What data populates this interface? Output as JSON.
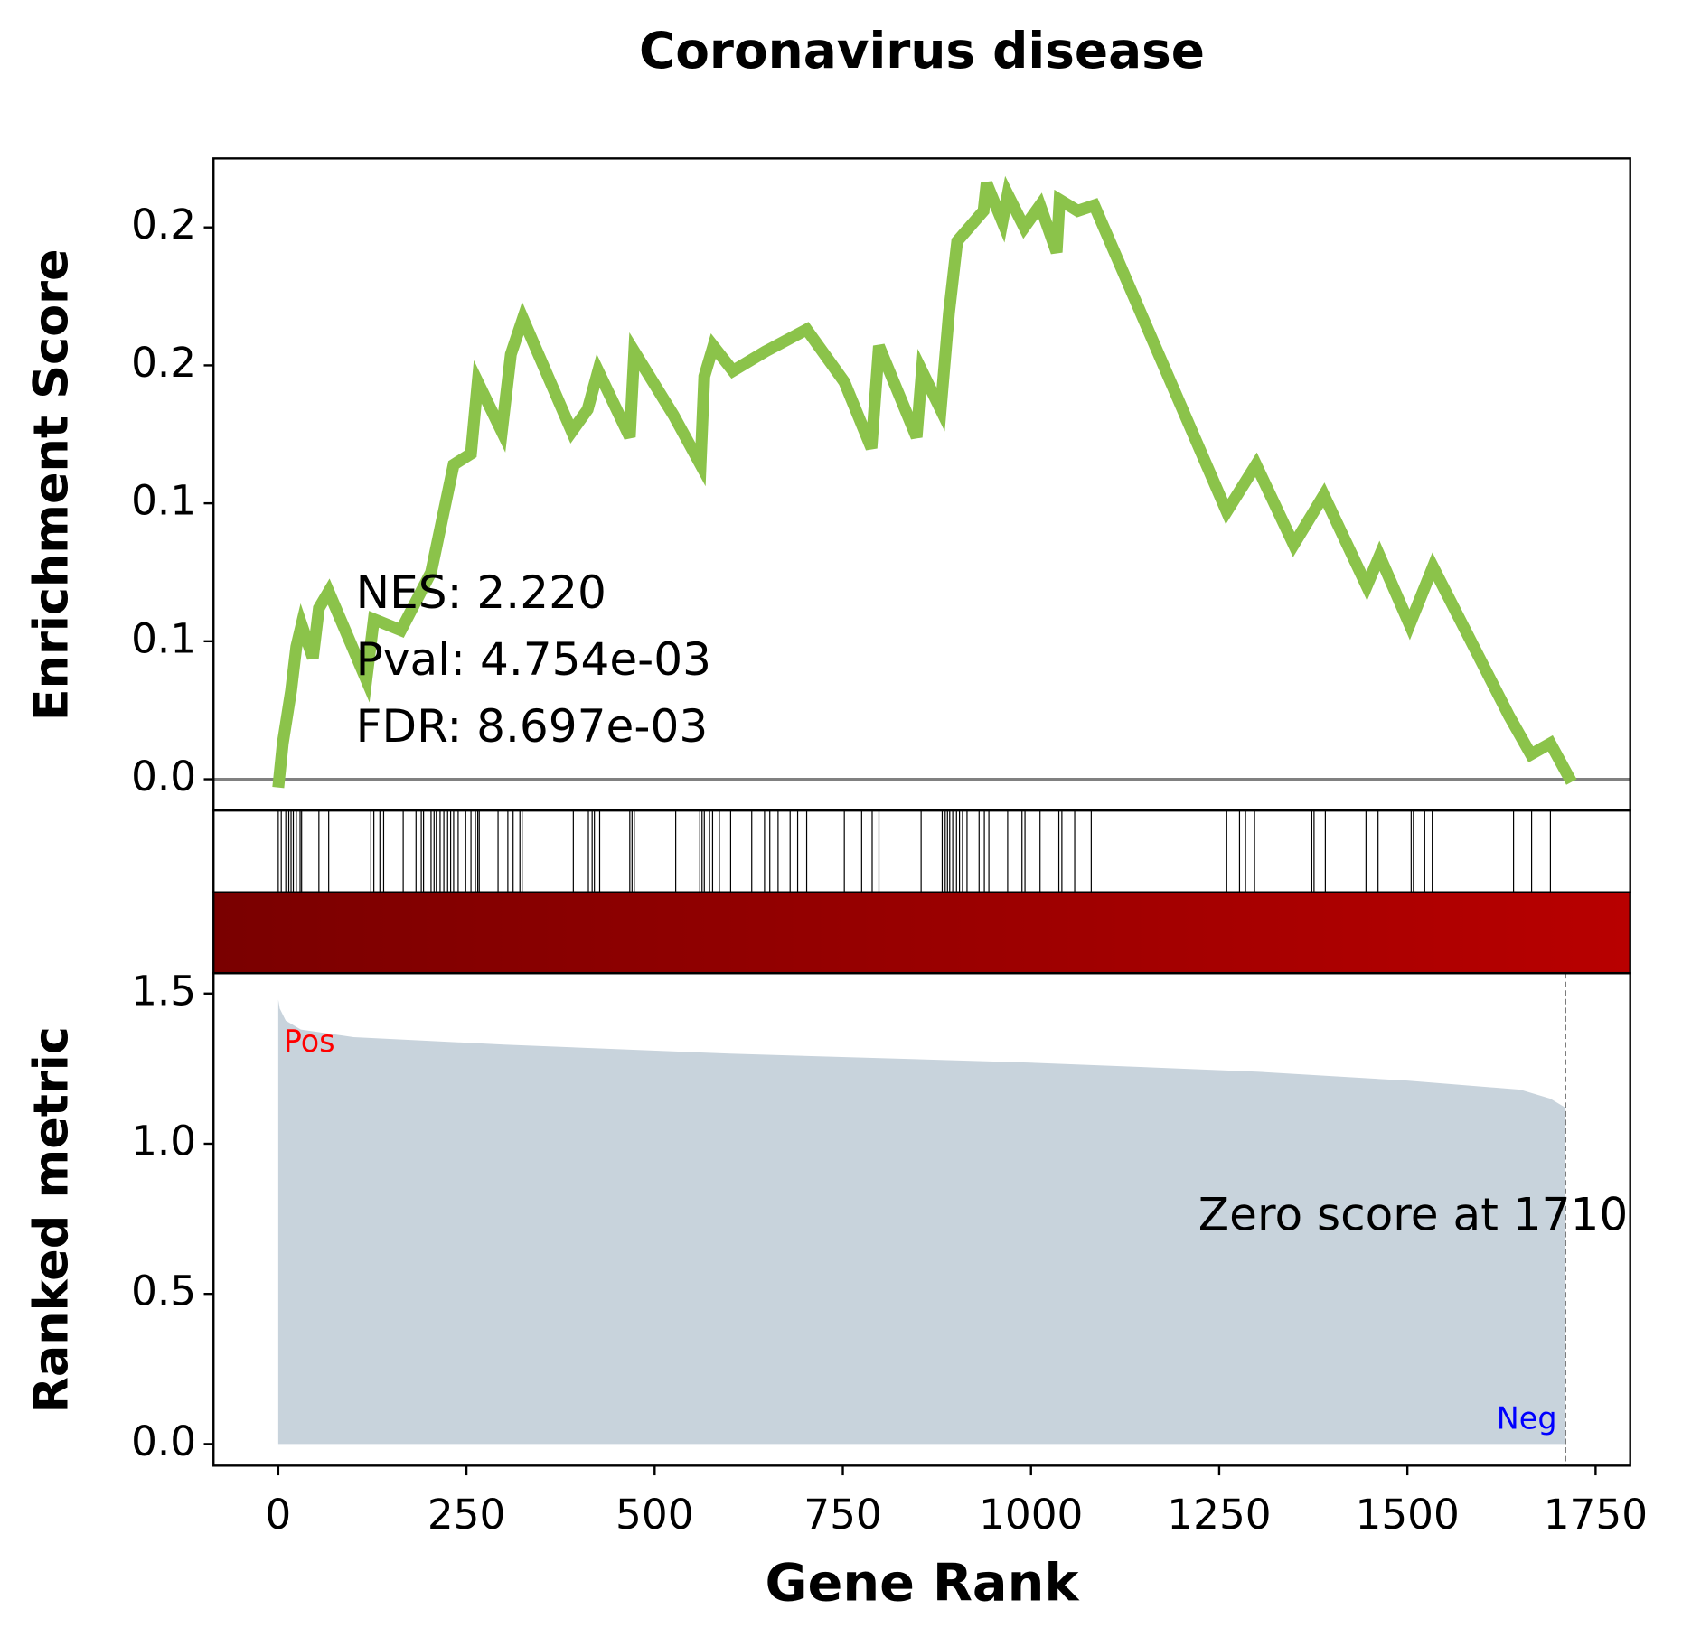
{
  "chart_data": {
    "type": "gsea",
    "title": "Coronavirus disease",
    "x_label": "Gene Rank",
    "xlim": [
      -86,
      1796
    ],
    "xticks": [
      0,
      250,
      500,
      750,
      1000,
      1250,
      1500,
      1750
    ],
    "es": {
      "y_label": "Enrichment Score",
      "ylim": [
        -0.0113,
        0.225
      ],
      "yticks": [
        {
          "value": 0,
          "label": "0.0"
        },
        {
          "value": 0.05,
          "label": "0.1"
        },
        {
          "value": 0.1,
          "label": "0.1"
        },
        {
          "value": 0.15,
          "label": "0.2"
        },
        {
          "value": 0.2,
          "label": "0.2"
        }
      ],
      "color": "#8bc34a",
      "zero_line_color": "#808080",
      "x": [
        0,
        6,
        17,
        24,
        31,
        46,
        54,
        67,
        117,
        127,
        163,
        203,
        233,
        256,
        265,
        297,
        309,
        325,
        390,
        411,
        425,
        467,
        473,
        525,
        561,
        566,
        578,
        604,
        647,
        702,
        752,
        788,
        798,
        848,
        855,
        880,
        891,
        902,
        937,
        941,
        962,
        969,
        991,
        1012,
        1034,
        1038,
        1062,
        1084,
        1260,
        1299,
        1349,
        1389,
        1446,
        1463,
        1503,
        1534,
        1635,
        1664,
        1690,
        1718
      ],
      "values": [
        -0.003,
        0.013,
        0.032,
        0.048,
        0.056,
        0.044,
        0.062,
        0.068,
        0.036,
        0.058,
        0.054,
        0.075,
        0.114,
        0.118,
        0.144,
        0.126,
        0.154,
        0.167,
        0.126,
        0.134,
        0.148,
        0.124,
        0.155,
        0.132,
        0.114,
        0.146,
        0.157,
        0.148,
        0.155,
        0.163,
        0.144,
        0.12,
        0.157,
        0.124,
        0.148,
        0.134,
        0.169,
        0.195,
        0.206,
        0.216,
        0.202,
        0.212,
        0.2,
        0.208,
        0.191,
        0.21,
        0.206,
        0.208,
        0.097,
        0.114,
        0.085,
        0.103,
        0.07,
        0.081,
        0.056,
        0.077,
        0.023,
        0.009,
        0.013,
        -0.001
      ]
    },
    "hits": {
      "color": "#000000",
      "x": [
        0,
        4,
        10,
        14,
        17,
        20,
        24,
        29,
        31,
        54,
        67,
        123,
        127,
        135,
        140,
        166,
        183,
        190,
        193,
        203,
        207,
        210,
        215,
        220,
        225,
        229,
        233,
        239,
        249,
        256,
        262,
        265,
        267,
        292,
        305,
        312,
        321,
        324,
        392,
        412,
        417,
        420,
        427,
        467,
        470,
        473,
        528,
        560,
        563,
        566,
        573,
        577,
        586,
        601,
        629,
        646,
        653,
        664,
        680,
        690,
        702,
        752,
        775,
        789,
        798,
        854,
        882,
        886,
        889,
        892,
        896,
        901,
        905,
        909,
        915,
        931,
        938,
        944,
        969,
        988,
        992,
        1012,
        1037,
        1041,
        1058,
        1080,
        1260,
        1277,
        1285,
        1297,
        1373,
        1376,
        1391,
        1445,
        1461,
        1505,
        1508,
        1523,
        1533,
        1641,
        1665,
        1690
      ]
    },
    "colorbar": [
      "#7a0000",
      "#b80000"
    ],
    "ranked": {
      "y_label": "Ranked metric",
      "ylim": [
        -0.072,
        1.568
      ],
      "yticks": [
        {
          "value": 0,
          "label": "0.0"
        },
        {
          "value": 0.5,
          "label": "0.5"
        },
        {
          "value": 1,
          "label": "1.0"
        },
        {
          "value": 1.5,
          "label": "1.5"
        }
      ],
      "color": "#c8d3dc",
      "x": [
        0,
        2,
        10,
        30,
        100,
        300,
        600,
        1000,
        1300,
        1500,
        1650,
        1690,
        1710
      ],
      "values": [
        1.48,
        1.45,
        1.41,
        1.38,
        1.355,
        1.33,
        1.3,
        1.27,
        1.24,
        1.21,
        1.18,
        1.15,
        1.12
      ]
    },
    "stats": [
      "NES: 2.220",
      "Pval: 4.754e-03",
      "FDR: 8.697e-03"
    ],
    "zero_score": 1710,
    "zero_score_label": "Zero score at 1710",
    "pos_label": "Pos",
    "pos_color": "#ff0000",
    "neg_label": "Neg",
    "neg_color": "#0000ff"
  }
}
